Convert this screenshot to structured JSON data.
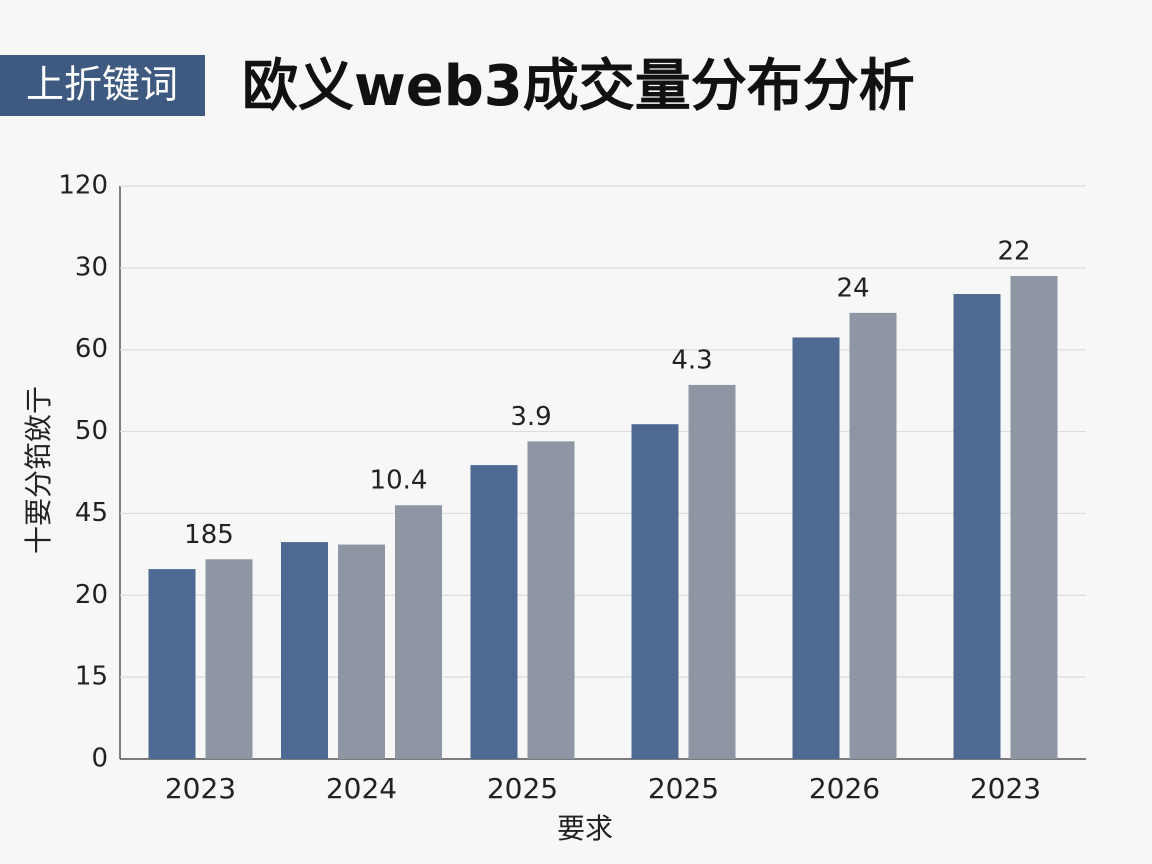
{
  "chart_data": {
    "type": "bar",
    "tag": "上折键词",
    "title": "欧义web3成交量分布分析",
    "y_label": "十要分筘敓亍",
    "x_label": "要求",
    "categories": [
      "2023",
      "2024",
      "2025",
      "2025",
      "2026",
      "2023"
    ],
    "series": [
      {
        "color": "#4e6a93",
        "values": [
          2.32,
          2.65,
          3.59,
          4.09,
          5.15,
          5.68
        ]
      },
      {
        "color": "#8e96a3",
        "values": [
          2.44,
          2.62,
          3.88,
          4.57,
          5.45,
          5.9
        ]
      },
      {
        "color": "#8e96a3",
        "values": [
          null,
          3.1,
          null,
          null,
          null,
          null
        ]
      }
    ],
    "group_labels": [
      "185",
      "10.4",
      "3.9",
      "4.3",
      "24",
      "22"
    ],
    "ylim": [
      0,
      7
    ],
    "yticks": [
      0,
      {
        "value": 1,
        "label": "15"
      },
      {
        "value": 2,
        "label": "20"
      },
      {
        "value": 3,
        "label": "45"
      },
      {
        "value": 4,
        "label": "50"
      },
      {
        "value": 5,
        "label": "60"
      },
      {
        "value": 6,
        "label": "30"
      },
      {
        "value": 7,
        "label": "120"
      }
    ],
    "grid": true
  }
}
